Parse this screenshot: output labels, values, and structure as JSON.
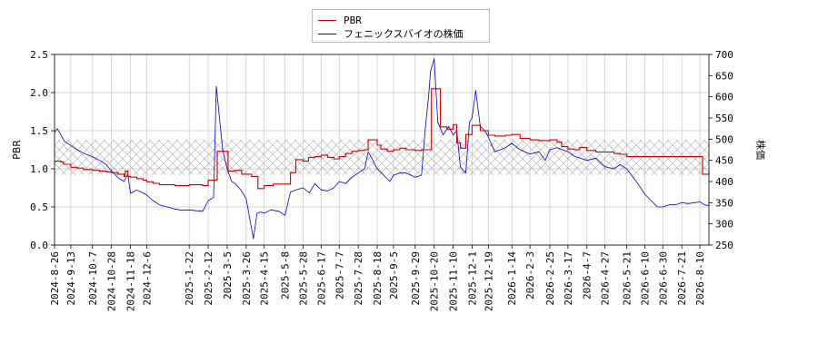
{
  "chart_data": {
    "type": "line",
    "legend": {
      "placement": "top-center",
      "items": [
        {
          "label": "PBR",
          "color": "#cc0000"
        },
        {
          "label": "フェニックスバイオの株価",
          "color": "#0000cc"
        }
      ]
    },
    "grid": true,
    "band": {
      "axis": "y_left",
      "range": [
        0.92,
        1.38
      ],
      "pattern": "crosshatch"
    },
    "x_axis": {
      "type": "date",
      "range": [
        "2024-08-26",
        "2026-08-20"
      ],
      "tick_labels": [
        "2024-8-26",
        "2024-9-13",
        "2024-10-7",
        "2024-10-28",
        "2024-11-18",
        "2024-12-6",
        "2025-1-22",
        "2025-2-12",
        "2025-3-5",
        "2025-3-26",
        "2025-4-15",
        "2025-5-8",
        "2025-5-28",
        "2025-6-17",
        "2025-7-7",
        "2025-7-28",
        "2025-8-18",
        "2025-9-5",
        "2025-9-29",
        "2025-10-20",
        "2025-11-10",
        "2025-12-1",
        "2025-12-19",
        "2026-1-14",
        "2026-2-3",
        "2026-2-25",
        "2026-3-17",
        "2026-4-7",
        "2026-4-27",
        "2026-5-21",
        "2026-6-10",
        "2026-6-30",
        "2026-7-21",
        "2026-8-10"
      ]
    },
    "y_left": {
      "label": "PBR",
      "range": [
        0,
        2.5
      ],
      "ticks": [
        "0.0",
        "0.5",
        "1.0",
        "1.5",
        "2.0",
        "2.5"
      ]
    },
    "y_right": {
      "label": "株価",
      "range": [
        250,
        700
      ],
      "ticks": [
        "250",
        "300",
        "350",
        "400",
        "450",
        "500",
        "550",
        "600",
        "650",
        "700"
      ]
    },
    "series": [
      {
        "name": "PBR",
        "axis": "left",
        "color": "#cc0000",
        "x": [
          "2024-08-26",
          "2024-09-02",
          "2024-09-05",
          "2024-09-13",
          "2024-09-20",
          "2024-09-27",
          "2024-10-07",
          "2024-10-15",
          "2024-10-22",
          "2024-10-28",
          "2024-11-04",
          "2024-11-11",
          "2024-11-12",
          "2024-11-15",
          "2024-11-18",
          "2024-11-25",
          "2024-12-02",
          "2024-12-06",
          "2024-12-13",
          "2024-12-20",
          "2025-01-06",
          "2025-01-22",
          "2025-02-06",
          "2025-02-12",
          "2025-02-21",
          "2025-02-22",
          "2025-03-05",
          "2025-03-06",
          "2025-03-14",
          "2025-03-21",
          "2025-03-26",
          "2025-04-01",
          "2025-04-08",
          "2025-04-15",
          "2025-04-25",
          "2025-05-08",
          "2025-05-14",
          "2025-05-20",
          "2025-05-28",
          "2025-06-03",
          "2025-06-10",
          "2025-06-17",
          "2025-06-24",
          "2025-07-01",
          "2025-07-07",
          "2025-07-14",
          "2025-07-21",
          "2025-07-28",
          "2025-08-04",
          "2025-08-08",
          "2025-08-13",
          "2025-08-18",
          "2025-08-22",
          "2025-08-29",
          "2025-09-05",
          "2025-09-12",
          "2025-09-19",
          "2025-09-29",
          "2025-10-06",
          "2025-10-13",
          "2025-10-17",
          "2025-10-20",
          "2025-10-27",
          "2025-11-03",
          "2025-11-10",
          "2025-11-14",
          "2025-11-18",
          "2025-11-24",
          "2025-12-01",
          "2025-12-10",
          "2025-12-19",
          "2025-12-26",
          "2026-01-07",
          "2026-01-14",
          "2026-01-23",
          "2026-02-03",
          "2026-02-13",
          "2026-02-25",
          "2026-03-05",
          "2026-03-10",
          "2026-03-17",
          "2026-03-24",
          "2026-03-30",
          "2026-04-07",
          "2026-04-17",
          "2026-04-27",
          "2026-05-07",
          "2026-05-14",
          "2026-05-21",
          "2026-06-10",
          "2026-06-30",
          "2026-07-21",
          "2026-08-10",
          "2026-08-13",
          "2026-08-20"
        ],
        "values": [
          1.1,
          1.09,
          1.06,
          1.02,
          1.01,
          0.99,
          0.98,
          0.97,
          0.96,
          0.95,
          0.93,
          0.9,
          0.97,
          0.9,
          0.89,
          0.87,
          0.85,
          0.83,
          0.81,
          0.79,
          0.78,
          0.79,
          0.78,
          0.85,
          0.86,
          1.23,
          1.23,
          0.97,
          0.98,
          0.93,
          0.93,
          0.9,
          0.74,
          0.78,
          0.8,
          0.8,
          0.95,
          1.12,
          1.1,
          1.15,
          1.16,
          1.18,
          1.15,
          1.13,
          1.16,
          1.2,
          1.23,
          1.24,
          1.25,
          1.38,
          1.38,
          1.31,
          1.26,
          1.23,
          1.25,
          1.27,
          1.25,
          1.24,
          1.25,
          1.25,
          2.05,
          2.05,
          1.55,
          1.52,
          1.58,
          1.34,
          1.27,
          1.45,
          1.57,
          1.5,
          1.44,
          1.43,
          1.44,
          1.45,
          1.4,
          1.38,
          1.37,
          1.38,
          1.35,
          1.29,
          1.26,
          1.25,
          1.28,
          1.24,
          1.22,
          1.22,
          1.2,
          1.19,
          1.16,
          1.16,
          1.16,
          1.16,
          1.16,
          0.93,
          0.92
        ]
      },
      {
        "name": "フェニックスバイオの株価",
        "axis": "right",
        "color": "#0000cc",
        "x": [
          "2024-08-26",
          "2024-08-29",
          "2024-09-02",
          "2024-09-06",
          "2024-09-13",
          "2024-09-20",
          "2024-09-27",
          "2024-10-07",
          "2024-10-15",
          "2024-10-22",
          "2024-10-28",
          "2024-11-05",
          "2024-11-11",
          "2024-11-15",
          "2024-11-18",
          "2024-11-25",
          "2024-12-02",
          "2024-12-06",
          "2024-12-13",
          "2024-12-20",
          "2025-01-06",
          "2025-01-14",
          "2025-01-22",
          "2025-01-30",
          "2025-02-06",
          "2025-02-12",
          "2025-02-18",
          "2025-02-21",
          "2025-02-24",
          "2025-02-28",
          "2025-03-05",
          "2025-03-10",
          "2025-03-14",
          "2025-03-20",
          "2025-03-26",
          "2025-03-31",
          "2025-04-03",
          "2025-04-07",
          "2025-04-11",
          "2025-04-15",
          "2025-04-22",
          "2025-05-01",
          "2025-05-08",
          "2025-05-14",
          "2025-05-20",
          "2025-05-28",
          "2025-06-04",
          "2025-06-10",
          "2025-06-17",
          "2025-06-24",
          "2025-07-01",
          "2025-07-07",
          "2025-07-14",
          "2025-07-21",
          "2025-07-28",
          "2025-08-04",
          "2025-08-08",
          "2025-08-12",
          "2025-08-18",
          "2025-08-25",
          "2025-09-01",
          "2025-09-05",
          "2025-09-12",
          "2025-09-19",
          "2025-09-29",
          "2025-10-06",
          "2025-10-10",
          "2025-10-14",
          "2025-10-16",
          "2025-10-20",
          "2025-10-24",
          "2025-10-30",
          "2025-11-05",
          "2025-11-10",
          "2025-11-14",
          "2025-11-18",
          "2025-11-24",
          "2025-11-28",
          "2025-12-01",
          "2025-12-05",
          "2025-12-10",
          "2025-12-15",
          "2025-12-19",
          "2025-12-26",
          "2026-01-07",
          "2026-01-14",
          "2026-01-23",
          "2026-02-03",
          "2026-02-13",
          "2026-02-20",
          "2026-02-25",
          "2026-03-05",
          "2026-03-17",
          "2026-03-24",
          "2026-04-07",
          "2026-04-17",
          "2026-04-27",
          "2026-05-07",
          "2026-05-14",
          "2026-05-21",
          "2026-05-28",
          "2026-06-04",
          "2026-06-10",
          "2026-06-17",
          "2026-06-24",
          "2026-06-30",
          "2026-07-07",
          "2026-07-14",
          "2026-07-21",
          "2026-07-28",
          "2026-08-04",
          "2026-08-10",
          "2026-08-15",
          "2026-08-20"
        ],
        "values": [
          515,
          525,
          510,
          495,
          485,
          475,
          467,
          458,
          450,
          440,
          425,
          408,
          400,
          418,
          372,
          380,
          373,
          368,
          355,
          345,
          335,
          332,
          333,
          331,
          330,
          355,
          362,
          625,
          560,
          475,
          430,
          400,
          395,
          380,
          360,
          300,
          265,
          325,
          328,
          325,
          333,
          330,
          320,
          375,
          380,
          385,
          373,
          395,
          380,
          378,
          385,
          400,
          395,
          410,
          420,
          430,
          470,
          455,
          430,
          415,
          400,
          415,
          420,
          420,
          410,
          415,
          520,
          605,
          660,
          690,
          540,
          510,
          530,
          510,
          520,
          435,
          420,
          540,
          550,
          615,
          530,
          520,
          505,
          470,
          480,
          490,
          475,
          465,
          470,
          450,
          475,
          480,
          470,
          460,
          450,
          455,
          435,
          430,
          440,
          430,
          410,
          390,
          370,
          355,
          340,
          340,
          345,
          345,
          350,
          348,
          350,
          352,
          345,
          343
        ]
      }
    ]
  }
}
